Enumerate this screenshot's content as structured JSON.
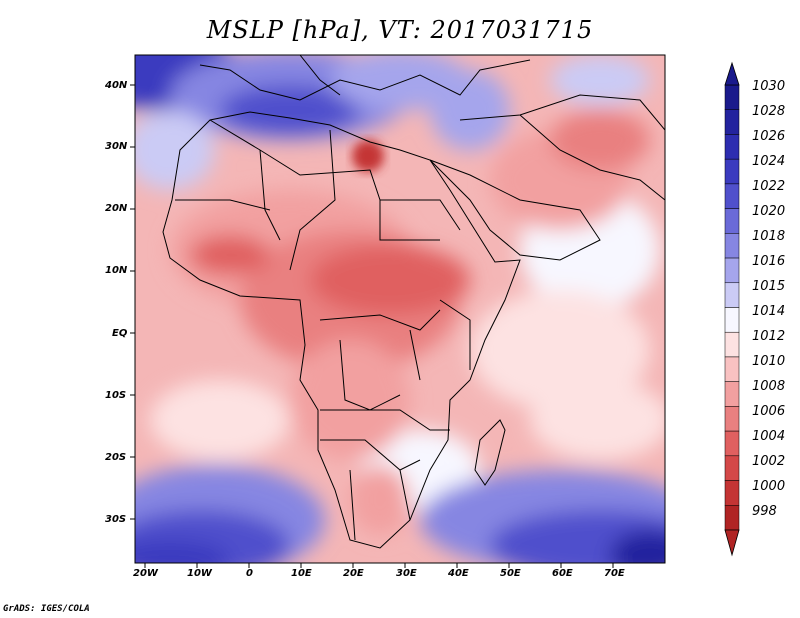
{
  "title": "MSLP [hPa], VT: 2017031715",
  "credit": "GrADS: IGES/COLA",
  "map": {
    "lon_labels": [
      "20W",
      "10W",
      "0",
      "10E",
      "20E",
      "30E",
      "40E",
      "50E",
      "60E",
      "70E"
    ],
    "lat_labels": [
      "40N",
      "30N",
      "20N",
      "10N",
      "EQ",
      "10S",
      "20S",
      "30S"
    ]
  },
  "colorbar": {
    "levels": [
      "1030",
      "1028",
      "1026",
      "1024",
      "1022",
      "1020",
      "1018",
      "1016",
      "1015",
      "1014",
      "1012",
      "1010",
      "1008",
      "1006",
      "1004",
      "1002",
      "1000",
      "998"
    ],
    "colors": [
      "#1a1a8c",
      "#23239e",
      "#2d2db0",
      "#3b3bbf",
      "#5050cc",
      "#6a6ad8",
      "#8686e2",
      "#a5a5ec",
      "#cbcbf5",
      "#f7f7ff",
      "#fde2e2",
      "#f9c2c2",
      "#f2a0a0",
      "#e98080",
      "#e06060",
      "#d44848",
      "#c43434",
      "#b02424"
    ]
  }
}
